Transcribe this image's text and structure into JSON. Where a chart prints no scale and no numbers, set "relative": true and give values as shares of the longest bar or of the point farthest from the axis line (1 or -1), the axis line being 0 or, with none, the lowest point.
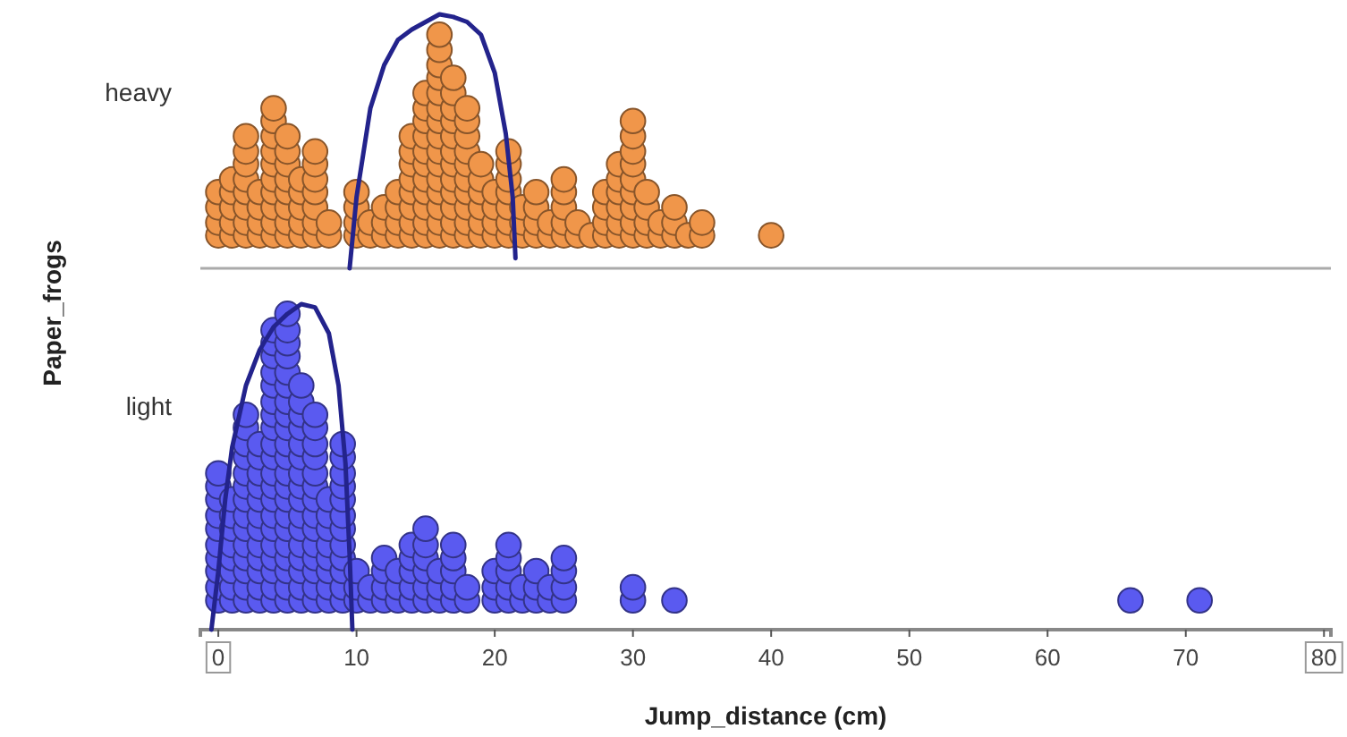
{
  "chart_data": [
    {
      "type": "scatter",
      "ylabel": "Paper_frogs",
      "relative": true,
      "xlim": [
        -1.3,
        80.5
      ],
      "tick_labels": false,
      "series": [
        {
          "name": "heavy",
          "marker": "circle",
          "color": "#f0964a",
          "x": [
            0,
            0,
            0,
            0,
            1,
            1,
            1,
            1,
            1,
            2,
            2,
            2,
            2,
            2,
            2,
            2,
            2,
            3,
            3,
            3,
            3,
            4,
            4,
            4,
            4,
            4,
            4,
            4,
            4,
            4,
            4,
            5,
            5,
            5,
            5,
            5,
            5,
            5,
            5,
            6,
            6,
            6,
            6,
            6,
            7,
            7,
            7,
            7,
            7,
            7,
            7,
            8,
            8,
            10,
            10,
            10,
            10,
            11,
            11,
            12,
            12,
            12,
            13,
            13,
            13,
            13,
            14,
            14,
            14,
            14,
            14,
            14,
            14,
            14,
            15,
            15,
            15,
            15,
            15,
            15,
            15,
            15,
            15,
            15,
            15,
            16,
            16,
            16,
            16,
            16,
            16,
            16,
            16,
            16,
            16,
            16,
            16,
            16,
            16,
            16,
            17,
            17,
            17,
            17,
            17,
            17,
            17,
            17,
            17,
            17,
            17,
            17,
            18,
            18,
            18,
            18,
            18,
            18,
            18,
            18,
            18,
            18,
            19,
            19,
            19,
            19,
            19,
            19,
            20,
            20,
            20,
            20,
            21,
            21,
            21,
            21,
            21,
            21,
            21,
            22,
            22,
            22,
            23,
            23,
            23,
            23,
            24,
            24,
            25,
            25,
            25,
            25,
            25,
            26,
            26,
            27,
            28,
            28,
            28,
            28,
            29,
            29,
            29,
            29,
            29,
            29,
            30,
            30,
            30,
            30,
            30,
            30,
            30,
            30,
            30,
            31,
            31,
            31,
            31,
            32,
            32,
            33,
            33,
            33,
            34,
            35,
            35,
            40
          ],
          "values": [
            0.13,
            0.18,
            0.24,
            0.3,
            0.13,
            0.18,
            0.24,
            0.3,
            0.35,
            0.13,
            0.18,
            0.24,
            0.3,
            0.35,
            0.41,
            0.46,
            0.52,
            0.13,
            0.18,
            0.24,
            0.3,
            0.13,
            0.18,
            0.24,
            0.3,
            0.35,
            0.41,
            0.46,
            0.52,
            0.58,
            0.63,
            0.13,
            0.18,
            0.24,
            0.3,
            0.35,
            0.41,
            0.46,
            0.52,
            0.13,
            0.18,
            0.24,
            0.3,
            0.35,
            0.13,
            0.18,
            0.24,
            0.3,
            0.35,
            0.41,
            0.46,
            0.13,
            0.18,
            0.13,
            0.18,
            0.24,
            0.3,
            0.13,
            0.18,
            0.13,
            0.18,
            0.24,
            0.13,
            0.18,
            0.24,
            0.3,
            0.13,
            0.18,
            0.24,
            0.3,
            0.35,
            0.41,
            0.46,
            0.52,
            0.13,
            0.18,
            0.24,
            0.3,
            0.35,
            0.41,
            0.46,
            0.52,
            0.58,
            0.63,
            0.69,
            0.13,
            0.18,
            0.24,
            0.3,
            0.35,
            0.41,
            0.46,
            0.52,
            0.58,
            0.63,
            0.69,
            0.75,
            0.8,
            0.86,
            0.92,
            0.13,
            0.18,
            0.24,
            0.3,
            0.35,
            0.41,
            0.46,
            0.52,
            0.58,
            0.63,
            0.69,
            0.75,
            0.13,
            0.18,
            0.24,
            0.3,
            0.35,
            0.41,
            0.46,
            0.52,
            0.58,
            0.63,
            0.13,
            0.18,
            0.24,
            0.3,
            0.35,
            0.41,
            0.13,
            0.18,
            0.24,
            0.3,
            0.13,
            0.18,
            0.24,
            0.3,
            0.35,
            0.41,
            0.46,
            0.13,
            0.18,
            0.24,
            0.13,
            0.18,
            0.24,
            0.3,
            0.13,
            0.18,
            0.13,
            0.18,
            0.24,
            0.3,
            0.35,
            0.13,
            0.18,
            0.13,
            0.13,
            0.18,
            0.24,
            0.3,
            0.13,
            0.18,
            0.24,
            0.3,
            0.35,
            0.41,
            0.13,
            0.18,
            0.24,
            0.3,
            0.35,
            0.41,
            0.46,
            0.52,
            0.58,
            0.13,
            0.18,
            0.24,
            0.3,
            0.13,
            0.18,
            0.13,
            0.18,
            0.24,
            0.13,
            0.13,
            0.18,
            0.13
          ]
        },
        {
          "type": "line",
          "marker": "none",
          "color": "#23238c",
          "x": [
            9.5,
            10,
            11,
            12,
            13,
            14,
            15,
            16,
            17,
            18,
            19,
            20,
            20.8,
            21.3,
            21.5
          ],
          "values": [
            0,
            0.28,
            0.63,
            0.8,
            0.9,
            0.94,
            0.97,
            1.0,
            0.99,
            0.97,
            0.92,
            0.77,
            0.53,
            0.28,
            0.04
          ]
        }
      ]
    },
    {
      "type": "scatter",
      "xlabel": "Jump_distance (cm)",
      "relative": true,
      "xlim": [
        -1.3,
        80.5
      ],
      "xticks": [
        0,
        10,
        20,
        30,
        40,
        50,
        60,
        70,
        80
      ],
      "tick_labels": "x",
      "series": [
        {
          "name": "light",
          "marker": "circle",
          "color": "#5a5af0",
          "x": [
            0,
            0,
            0,
            0,
            0,
            0,
            0,
            0,
            0,
            0,
            1,
            1,
            1,
            1,
            1,
            1,
            1,
            1,
            2,
            2,
            2,
            2,
            2,
            2,
            2,
            2,
            2,
            2,
            2,
            2,
            2,
            2,
            3,
            3,
            3,
            3,
            3,
            3,
            3,
            3,
            3,
            3,
            3,
            3,
            4,
            4,
            4,
            4,
            4,
            4,
            4,
            4,
            4,
            4,
            4,
            4,
            4,
            4,
            4,
            4,
            4,
            4,
            4,
            4,
            5,
            5,
            5,
            5,
            5,
            5,
            5,
            5,
            5,
            5,
            5,
            5,
            5,
            5,
            5,
            5,
            5,
            5,
            5,
            5,
            5,
            6,
            6,
            6,
            6,
            6,
            6,
            6,
            6,
            6,
            6,
            6,
            6,
            6,
            6,
            6,
            6,
            7,
            7,
            7,
            7,
            7,
            7,
            7,
            7,
            7,
            7,
            7,
            7,
            7,
            7,
            8,
            8,
            8,
            8,
            8,
            8,
            8,
            8,
            9,
            9,
            9,
            9,
            9,
            9,
            9,
            9,
            9,
            9,
            9,
            9,
            10,
            10,
            10,
            11,
            11,
            12,
            12,
            12,
            12,
            13,
            13,
            13,
            14,
            14,
            14,
            14,
            14,
            15,
            15,
            15,
            15,
            15,
            15,
            16,
            16,
            16,
            17,
            17,
            17,
            17,
            17,
            18,
            18,
            20,
            20,
            20,
            21,
            21,
            21,
            21,
            21,
            22,
            22,
            23,
            23,
            23,
            24,
            24,
            25,
            25,
            25,
            25,
            30,
            30,
            33,
            66,
            71
          ],
          "values": [
            0.09,
            0.13,
            0.18,
            0.22,
            0.26,
            0.31,
            0.35,
            0.4,
            0.44,
            0.48,
            0.09,
            0.13,
            0.18,
            0.22,
            0.26,
            0.31,
            0.35,
            0.4,
            0.09,
            0.13,
            0.18,
            0.22,
            0.26,
            0.31,
            0.35,
            0.4,
            0.44,
            0.48,
            0.53,
            0.57,
            0.62,
            0.66,
            0.09,
            0.13,
            0.18,
            0.22,
            0.26,
            0.31,
            0.35,
            0.4,
            0.44,
            0.48,
            0.53,
            0.57,
            0.09,
            0.13,
            0.18,
            0.22,
            0.26,
            0.31,
            0.35,
            0.4,
            0.44,
            0.48,
            0.53,
            0.57,
            0.62,
            0.66,
            0.7,
            0.75,
            0.79,
            0.84,
            0.88,
            0.92,
            0.09,
            0.13,
            0.18,
            0.22,
            0.26,
            0.31,
            0.35,
            0.4,
            0.44,
            0.48,
            0.53,
            0.57,
            0.62,
            0.66,
            0.7,
            0.75,
            0.79,
            0.84,
            0.88,
            0.92,
            0.97,
            0.09,
            0.13,
            0.18,
            0.22,
            0.26,
            0.31,
            0.35,
            0.4,
            0.44,
            0.48,
            0.53,
            0.57,
            0.62,
            0.66,
            0.7,
            0.75,
            0.09,
            0.13,
            0.18,
            0.22,
            0.26,
            0.31,
            0.35,
            0.4,
            0.44,
            0.48,
            0.53,
            0.57,
            0.62,
            0.66,
            0.09,
            0.13,
            0.18,
            0.22,
            0.26,
            0.31,
            0.35,
            0.4,
            0.09,
            0.13,
            0.18,
            0.22,
            0.26,
            0.31,
            0.35,
            0.4,
            0.44,
            0.48,
            0.53,
            0.57,
            0.09,
            0.13,
            0.18,
            0.09,
            0.13,
            0.09,
            0.13,
            0.18,
            0.22,
            0.09,
            0.13,
            0.18,
            0.09,
            0.13,
            0.18,
            0.22,
            0.26,
            0.09,
            0.13,
            0.18,
            0.22,
            0.26,
            0.31,
            0.09,
            0.13,
            0.18,
            0.09,
            0.13,
            0.18,
            0.22,
            0.26,
            0.09,
            0.13,
            0.09,
            0.13,
            0.18,
            0.09,
            0.13,
            0.18,
            0.22,
            0.26,
            0.09,
            0.13,
            0.09,
            0.13,
            0.18,
            0.09,
            0.13,
            0.09,
            0.13,
            0.18,
            0.22,
            0.09,
            0.13,
            0.09,
            0.09,
            0.09
          ]
        },
        {
          "type": "line",
          "marker": "none",
          "color": "#23238c",
          "x": [
            -0.5,
            0,
            0.5,
            1,
            2,
            3,
            4,
            5,
            6,
            7,
            8,
            8.7,
            9.2,
            9.5,
            9.7
          ],
          "values": [
            0,
            0.18,
            0.4,
            0.56,
            0.75,
            0.86,
            0.93,
            0.97,
            1.0,
            0.99,
            0.91,
            0.75,
            0.51,
            0.23,
            0
          ]
        }
      ]
    }
  ]
}
